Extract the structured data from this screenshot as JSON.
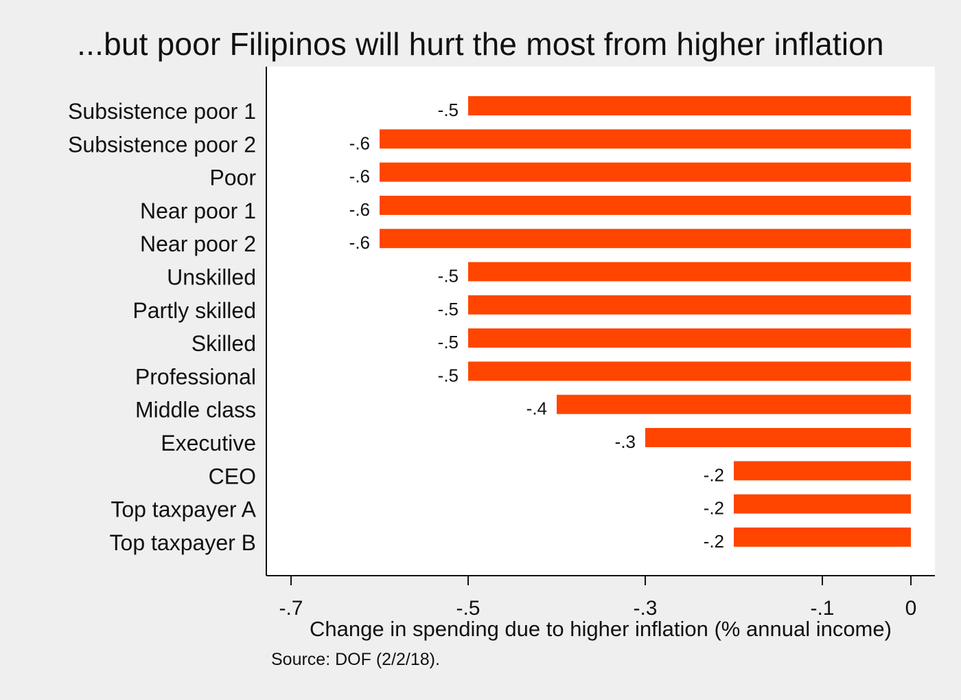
{
  "chart_data": {
    "type": "bar",
    "orientation": "horizontal",
    "title": "...but poor Filipinos will hurt the most from higher inflation",
    "xlabel": "Change in spending due to higher inflation (% annual income)",
    "ylabel": "",
    "source": "Source: DOF (2/2/18).",
    "categories": [
      "Subsistence poor 1",
      "Subsistence poor 2",
      "Poor",
      "Near poor 1",
      "Near poor 2",
      "Unskilled",
      "Partly skilled",
      "Skilled",
      "Professional",
      "Middle class",
      "Executive",
      "CEO",
      "Top taxpayer A",
      "Top taxpayer B"
    ],
    "values": [
      -0.5,
      -0.6,
      -0.6,
      -0.6,
      -0.6,
      -0.5,
      -0.5,
      -0.5,
      -0.5,
      -0.4,
      -0.3,
      -0.2,
      -0.2,
      -0.2
    ],
    "value_labels": [
      "-.5",
      "-.6",
      "-.6",
      "-.6",
      "-.6",
      "-.5",
      "-.5",
      "-.5",
      "-.5",
      "-.4",
      "-.3",
      "-.2",
      "-.2",
      "-.2"
    ],
    "xticks": [
      -0.7,
      -0.5,
      -0.3,
      -0.1,
      0
    ],
    "xtick_labels": [
      "-.7",
      "-.5",
      "-.3",
      "-.1",
      "0"
    ],
    "xlim": [
      -0.7,
      0
    ],
    "grid": false,
    "legend": "none",
    "colors": {
      "bar": "#ff4500",
      "background": "#efefef",
      "plot_background": "#ffffff",
      "text": "#111111"
    }
  }
}
